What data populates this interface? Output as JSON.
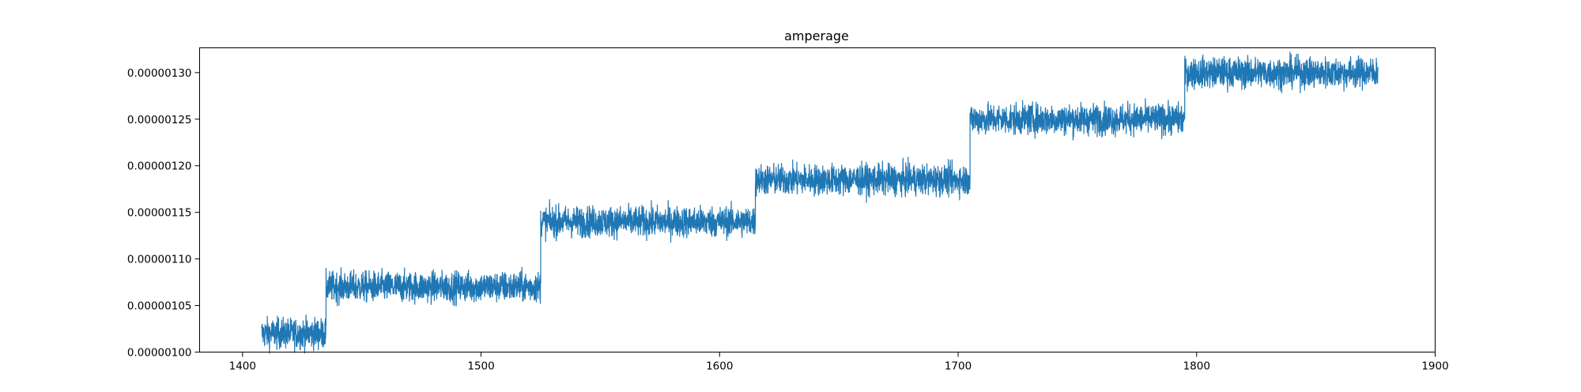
{
  "chart_data": {
    "type": "line",
    "title": "amperage",
    "xlabel": "",
    "ylabel": "",
    "xlim": [
      1382,
      1900
    ],
    "ylim": [
      1e-06,
      1.3266e-06
    ],
    "x_ticks": [
      1400,
      1500,
      1600,
      1700,
      1800,
      1900
    ],
    "x_tick_labels": [
      "1400",
      "1500",
      "1600",
      "1700",
      "1800",
      "1900"
    ],
    "y_ticks": [
      1e-06,
      1.05e-06,
      1.1e-06,
      1.15e-06,
      1.2e-06,
      1.25e-06,
      1.3e-06
    ],
    "y_tick_labels": [
      "0.00000100",
      "0.00000105",
      "0.00000110",
      "0.00000115",
      "0.00000120",
      "0.00000125",
      "0.00000130"
    ],
    "grid": false,
    "legend": "none",
    "series_color": "#1f77b4",
    "series": [
      {
        "levels": [
          {
            "x_start": 1408,
            "x_end": 1435,
            "y": 1.02e-06,
            "noise": 9e-09
          },
          {
            "x_start": 1435,
            "x_end": 1525,
            "y": 1.07e-06,
            "noise": 9e-09
          },
          {
            "x_start": 1525,
            "x_end": 1615,
            "y": 1.14e-06,
            "noise": 9e-09
          },
          {
            "x_start": 1615,
            "x_end": 1705,
            "y": 1.185e-06,
            "noise": 9e-09
          },
          {
            "x_start": 1705,
            "x_end": 1795,
            "y": 1.25e-06,
            "noise": 9e-09
          },
          {
            "x_start": 1795,
            "x_end": 1876,
            "y": 1.3e-06,
            "noise": 9e-09
          }
        ]
      }
    ]
  }
}
